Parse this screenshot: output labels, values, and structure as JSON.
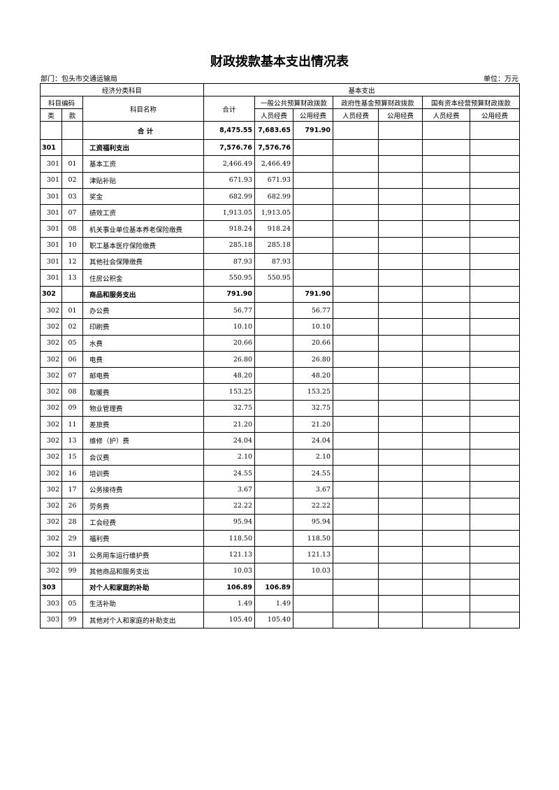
{
  "header": {
    "title": "财政拨款基本支出情况表",
    "department": "部门：包头市交通运输局",
    "unit": "单位：万元"
  },
  "table": {
    "columns": {
      "economic_classification": "经济分类科目",
      "basic_expenditure": "基本支出",
      "subject_code": "科目编码",
      "subject_name": "科目名称",
      "total": "合计",
      "general_budget": "一般公共预算财政拨款",
      "fund_budget": "政府性基金预算财政拨款",
      "state_capital_budget": "国有资本经营预算财政拨款",
      "class": "类",
      "item": "款",
      "personnel": [
        "人员经费",
        "人员经费",
        "人员经费"
      ],
      "public": [
        "公用经费",
        "公用经费",
        "公用经费"
      ]
    },
    "rows": [
      {
        "name": "合 计",
        "total": "8,475.55",
        "personnel": "7,683.65",
        "public": "791.90"
      },
      {
        "class": "301",
        "name": "工资福利支出",
        "total": "7,576.76",
        "personnel": "7,576.76"
      },
      {
        "class": "301",
        "item": "01",
        "name": "基本工资",
        "total": "2,466.49",
        "personnel": "2,466.49"
      },
      {
        "class": "301",
        "item": "02",
        "name": "津贴补贴",
        "total": "671.93",
        "personnel": "671.93"
      },
      {
        "class": "301",
        "item": "03",
        "name": "奖金",
        "total": "682.99",
        "personnel": "682.99"
      },
      {
        "class": "301",
        "item": "07",
        "name": "绩效工资",
        "total": "1,913.05",
        "personnel": "1,913.05"
      },
      {
        "class": "301",
        "item": "08",
        "name": "机关事业单位基本养老保险缴费",
        "total": "918.24",
        "personnel": "918.24"
      },
      {
        "class": "301",
        "item": "10",
        "name": "职工基本医疗保险缴费",
        "total": "285.18",
        "personnel": "285.18"
      },
      {
        "class": "301",
        "item": "12",
        "name": "其他社会保障缴费",
        "total": "87.93",
        "personnel": "87.93"
      },
      {
        "class": "301",
        "item": "13",
        "name": "住房公积金",
        "total": "550.95",
        "personnel": "550.95"
      },
      {
        "class": "302",
        "name": "商品和服务支出",
        "total": "791.90",
        "public": "791.90"
      },
      {
        "class": "302",
        "item": "01",
        "name": "办公费",
        "total": "56.77",
        "public": "56.77"
      },
      {
        "class": "302",
        "item": "02",
        "name": "印刷费",
        "total": "10.10",
        "public": "10.10"
      },
      {
        "class": "302",
        "item": "05",
        "name": "水费",
        "total": "20.66",
        "public": "20.66"
      },
      {
        "class": "302",
        "item": "06",
        "name": "电费",
        "total": "26.80",
        "public": "26.80"
      },
      {
        "class": "302",
        "item": "07",
        "name": "邮电费",
        "total": "48.20",
        "public": "48.20"
      },
      {
        "class": "302",
        "item": "08",
        "name": "取暖费",
        "total": "153.25",
        "public": "153.25"
      },
      {
        "class": "302",
        "item": "09",
        "name": "物业管理费",
        "total": "32.75",
        "public": "32.75"
      },
      {
        "class": "302",
        "item": "11",
        "name": "差旅费",
        "total": "21.20",
        "public": "21.20"
      },
      {
        "class": "302",
        "item": "13",
        "name": "维修（护）费",
        "total": "24.04",
        "public": "24.04"
      },
      {
        "class": "302",
        "item": "15",
        "name": "会议费",
        "total": "2.10",
        "public": "2.10"
      },
      {
        "class": "302",
        "item": "16",
        "name": "培训费",
        "total": "24.55",
        "public": "24.55"
      },
      {
        "class": "302",
        "item": "17",
        "name": "公务接待费",
        "total": "3.67",
        "public": "3.67"
      },
      {
        "class": "302",
        "item": "26",
        "name": "劳务费",
        "total": "22.22",
        "public": "22.22"
      },
      {
        "class": "302",
        "item": "28",
        "name": "工会经费",
        "total": "95.94",
        "public": "95.94"
      },
      {
        "class": "302",
        "item": "29",
        "name": "福利费",
        "total": "118.50",
        "public": "118.50"
      },
      {
        "class": "302",
        "item": "31",
        "name": "公务用车运行维护费",
        "total": "121.13",
        "public": "121.13"
      },
      {
        "class": "302",
        "item": "99",
        "name": "其他商品和服务支出",
        "total": "10.03",
        "public": "10.03"
      },
      {
        "class": "303",
        "name": "对个人和家庭的补助",
        "total": "106.89",
        "personnel": "106.89"
      },
      {
        "class": "303",
        "item": "05",
        "name": "生活补助",
        "total": "1.49",
        "personnel": "1.49"
      },
      {
        "class": "303",
        "item": "99",
        "name": "其他对个人和家庭的补助支出",
        "total": "105.40",
        "personnel": "105.40"
      }
    ]
  }
}
